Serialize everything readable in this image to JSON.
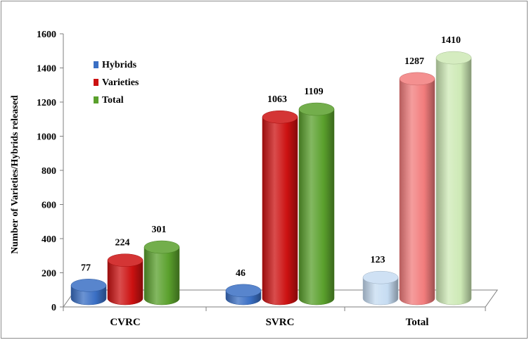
{
  "chart_data": {
    "type": "bar",
    "ylabel": "Number of Varieties/Hybrids released",
    "ylim": [
      0,
      1600
    ],
    "yticks": [
      0,
      200,
      400,
      600,
      800,
      1000,
      1200,
      1400,
      1600
    ],
    "categories": [
      "CVRC",
      "SVRC",
      "Total"
    ],
    "series": [
      {
        "name": "Hybrids",
        "values": [
          77,
          46,
          123
        ],
        "color": "#3a6fc4"
      },
      {
        "name": "Varieties",
        "values": [
          224,
          1063,
          1287
        ],
        "color": "#cc1111"
      },
      {
        "name": "Total",
        "values": [
          301,
          1109,
          1410
        ],
        "color": "#5aa02c"
      }
    ],
    "total_group_colors": [
      "#c6dcf2",
      "#f27c7c",
      "#cde9b5"
    ],
    "legend_position": "upper-left",
    "grid": false
  }
}
